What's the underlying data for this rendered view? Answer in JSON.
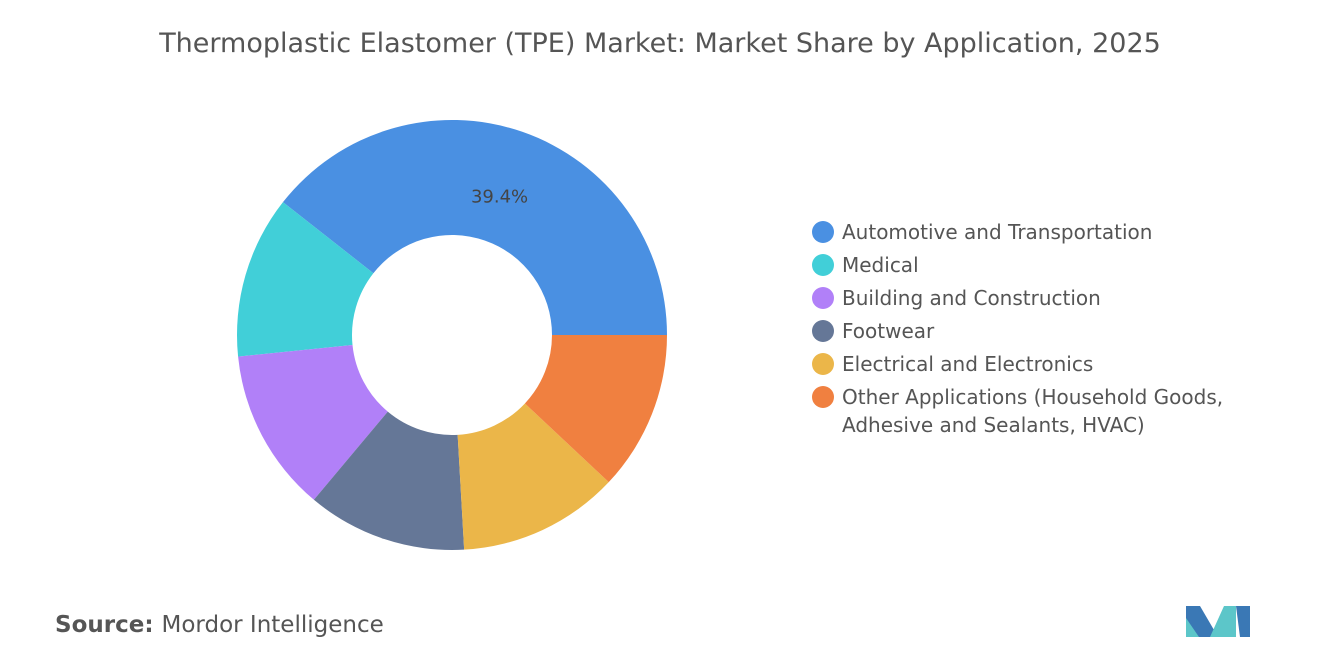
{
  "chart_data": {
    "type": "donut",
    "title": "Thermoplastic Elastomer (TPE) Market: Market Share by Application, 2025",
    "categories": [
      "Automotive and Transportation",
      "Medical",
      "Building and Construction",
      "Footwear",
      "Electrical and Electronics",
      "Other Applications (Household Goods, Adhesive and Sealants, HVAC)"
    ],
    "values": [
      39.4,
      12.2,
      12.3,
      12.0,
      12.1,
      12.0
    ],
    "value_labels": [
      "39.4%",
      null,
      null,
      null,
      null,
      null
    ],
    "colors": [
      "#4a90e2",
      "#41cfd8",
      "#b180f8",
      "#657797",
      "#ebb649",
      "#f08040"
    ],
    "source_label": "Source:",
    "source": "Mordor Intelligence"
  }
}
